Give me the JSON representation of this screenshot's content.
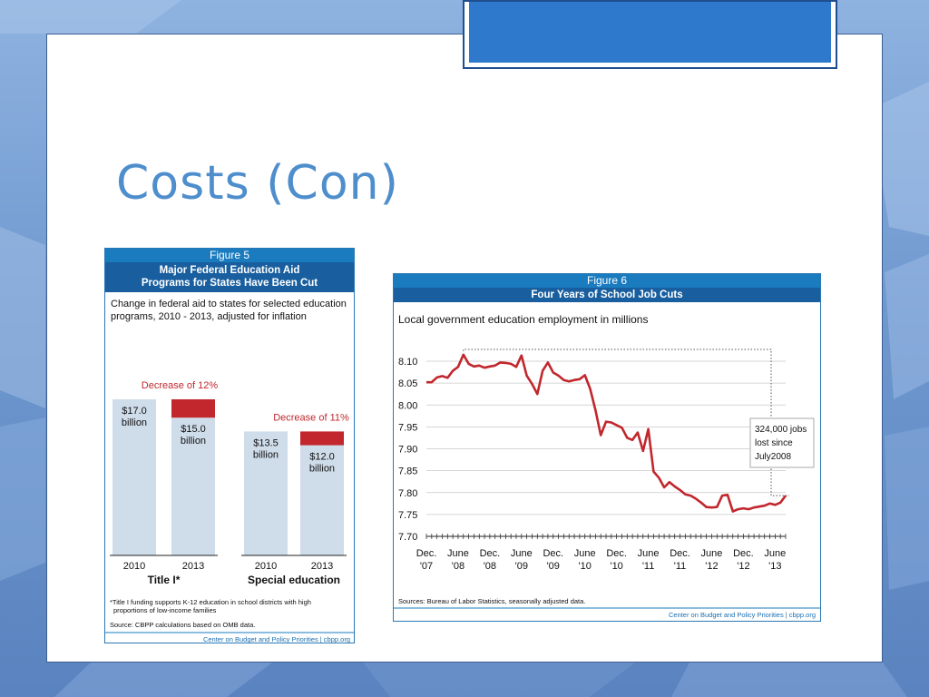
{
  "slide": {
    "title": "Costs (Con)"
  },
  "figure5": {
    "label": "Figure 5",
    "title_line1": "Major Federal Education Aid",
    "title_line2": "Programs for States Have Been Cut",
    "desc_line1": "Change in federal aid to states for selected education",
    "desc_line2": "programs, 2010 - 2013, adjusted for inflation",
    "footnote_line1": "*Title I funding supports K-12 education in school districts with high",
    "footnote_line2": "proportions of low-income families",
    "source": "Source: CBPP calculations based on OMB data.",
    "credit": "Center on Budget and Policy Priorities | cbpp.org",
    "colors": {
      "bar": "#cfdcea",
      "cut": "#c1272d",
      "header": "#195f9f"
    }
  },
  "figure6": {
    "label": "Figure 6",
    "title": "Four Years of School Job Cuts",
    "subtitle": "Local government education employment in millions",
    "source": "Sources: Bureau of Labor Statistics, seasonally adjusted data.",
    "credit": "Center on Budget and Policy Priorities | cbpp.org",
    "callout": [
      "324,000 jobs",
      "lost since",
      "July2008"
    ],
    "colors": {
      "line": "#c1272d"
    }
  },
  "chart_data": [
    {
      "type": "bar",
      "groups": [
        {
          "name": "Title I*",
          "categories": [
            "2010",
            "2013"
          ],
          "values": [
            17.0,
            15.0
          ],
          "value_labels": [
            "$17.0",
            "$15.0"
          ],
          "unit_label": "billion",
          "annotation": "Decrease of 12%"
        },
        {
          "name": "Special education",
          "categories": [
            "2010",
            "2013"
          ],
          "values": [
            13.5,
            12.0
          ],
          "value_labels": [
            "$13.5",
            "$12.0"
          ],
          "unit_label": "billion",
          "annotation": "Decrease of 11%"
        }
      ],
      "ylim": [
        0,
        17.0
      ]
    },
    {
      "type": "line",
      "ylim": [
        7.7,
        8.1
      ],
      "yticks": [
        "8.10",
        "8.05",
        "8.00",
        "7.95",
        "7.90",
        "7.85",
        "7.80",
        "7.75",
        "7.70"
      ],
      "x_labels": [
        {
          "top": "Dec.",
          "bottom": "'07"
        },
        {
          "top": "June",
          "bottom": "'08"
        },
        {
          "top": "Dec.",
          "bottom": "'08"
        },
        {
          "top": "June",
          "bottom": "'09"
        },
        {
          "top": "Dec.",
          "bottom": "'09"
        },
        {
          "top": "June",
          "bottom": "'10"
        },
        {
          "top": "Dec.",
          "bottom": "'10"
        },
        {
          "top": "June",
          "bottom": "'11"
        },
        {
          "top": "Dec.",
          "bottom": "'11"
        },
        {
          "top": "June",
          "bottom": "'12"
        },
        {
          "top": "Dec.",
          "bottom": "'12"
        },
        {
          "top": "June",
          "bottom": "'13"
        }
      ],
      "series": [
        {
          "values": [
            8.052,
            8.052,
            8.063,
            8.066,
            8.062,
            8.078,
            8.087,
            8.115,
            8.094,
            8.088,
            8.09,
            8.085,
            8.088,
            8.09,
            8.097,
            8.096,
            8.094,
            8.087,
            8.113,
            8.067,
            8.048,
            8.025,
            8.078,
            8.097,
            8.074,
            8.067,
            8.057,
            8.054,
            8.057,
            8.059,
            8.068,
            8.037,
            7.988,
            7.931,
            7.962,
            7.96,
            7.954,
            7.948,
            7.925,
            7.92,
            7.937,
            7.895,
            7.945,
            7.848,
            7.834,
            7.812,
            7.824,
            7.814,
            7.806,
            7.796,
            7.793,
            7.786,
            7.777,
            7.767,
            7.766,
            7.767,
            7.793,
            7.795,
            7.757,
            7.762,
            7.764,
            7.762,
            7.766,
            7.768,
            7.77,
            7.775,
            7.772,
            7.777,
            7.793
          ]
        }
      ]
    }
  ]
}
